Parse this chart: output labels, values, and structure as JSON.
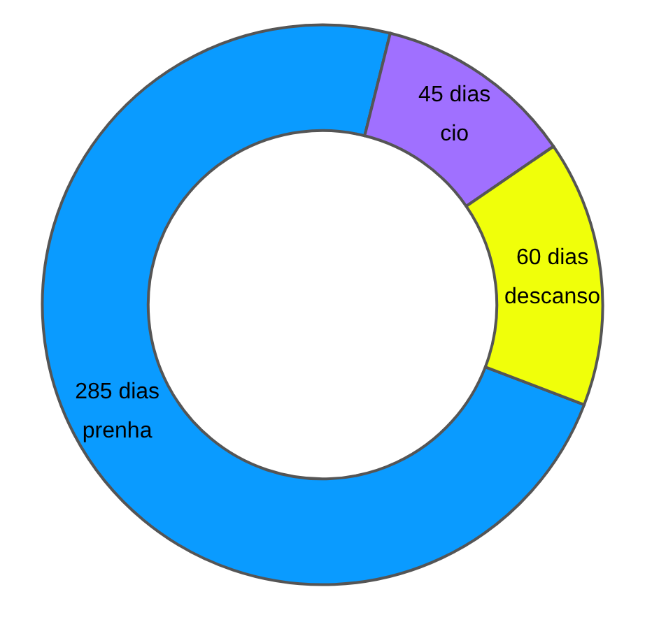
{
  "chart_data": {
    "type": "donut",
    "categories": [
      "prenha",
      "cio",
      "descanso"
    ],
    "values": [
      285,
      45,
      60
    ],
    "colors": [
      "#0a9bff",
      "#a070ff",
      "#f0ff0a"
    ],
    "value_labels": [
      "285 dias",
      "45 dias",
      "60 dias"
    ],
    "legend": false
  }
}
